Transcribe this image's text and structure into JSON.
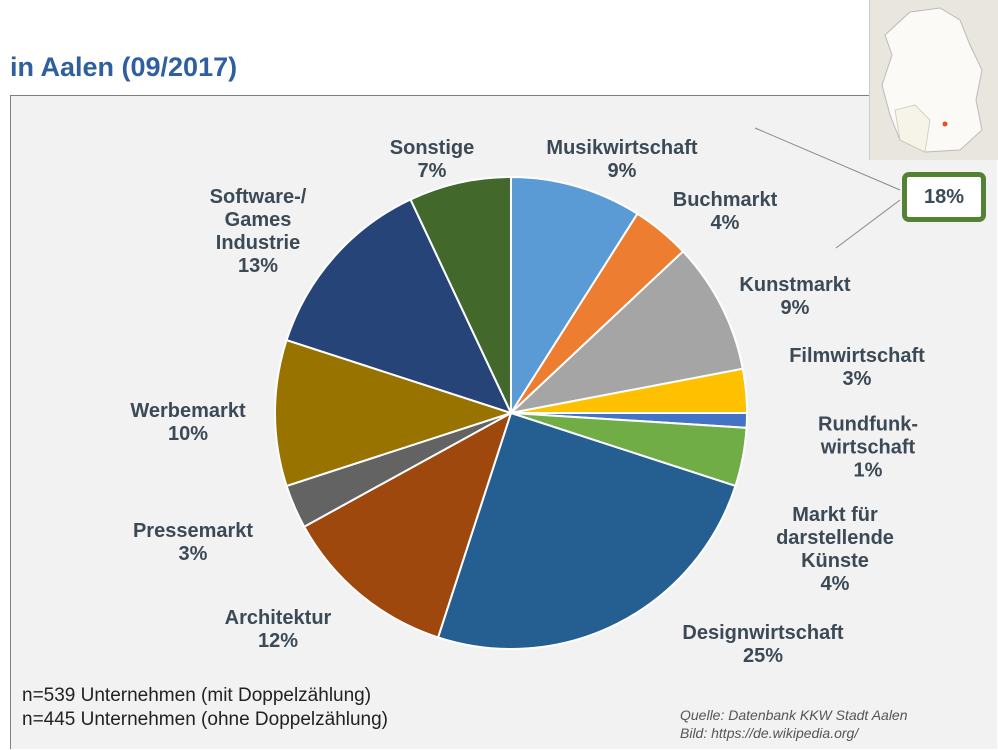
{
  "chart_data": {
    "type": "pie",
    "title": "in Aalen (09/2017)",
    "categories": [
      "Musikwirtschaft",
      "Buchmarkt",
      "Kunstmarkt",
      "Filmwirtschaft",
      "Rundfunk-\nwirtschaft",
      "Markt für\ndarstellende\nKünste",
      "Designwirtschaft",
      "Architektur",
      "Pressemarkt",
      "Werbemarkt",
      "Software-/\nGames\nIndustrie",
      "Sonstige"
    ],
    "values": [
      9,
      4,
      9,
      3,
      1,
      4,
      25,
      12,
      3,
      10,
      13,
      7
    ],
    "value_labels": [
      "9%",
      "4%",
      "9%",
      "3%",
      "1%",
      "4%",
      "25%",
      "12%",
      "3%",
      "10%",
      "13%",
      "7%"
    ],
    "colors": [
      "#5b9bd5",
      "#ed7d31",
      "#a5a5a5",
      "#ffc000",
      "#4472c4",
      "#70ad47",
      "#255e91",
      "#9e480e",
      "#636363",
      "#997300",
      "#264478",
      "#43682b"
    ],
    "annotations": {
      "highlight": "18%",
      "notes": [
        "n=539 Unternehmen (mit Doppelzählung)",
        "n=445 Unternehmen (ohne Doppelzählung)"
      ],
      "source": [
        "Quelle: Datenbank KKW Stadt Aalen",
        "Bild: https://de.wikipedia.org/"
      ]
    }
  }
}
